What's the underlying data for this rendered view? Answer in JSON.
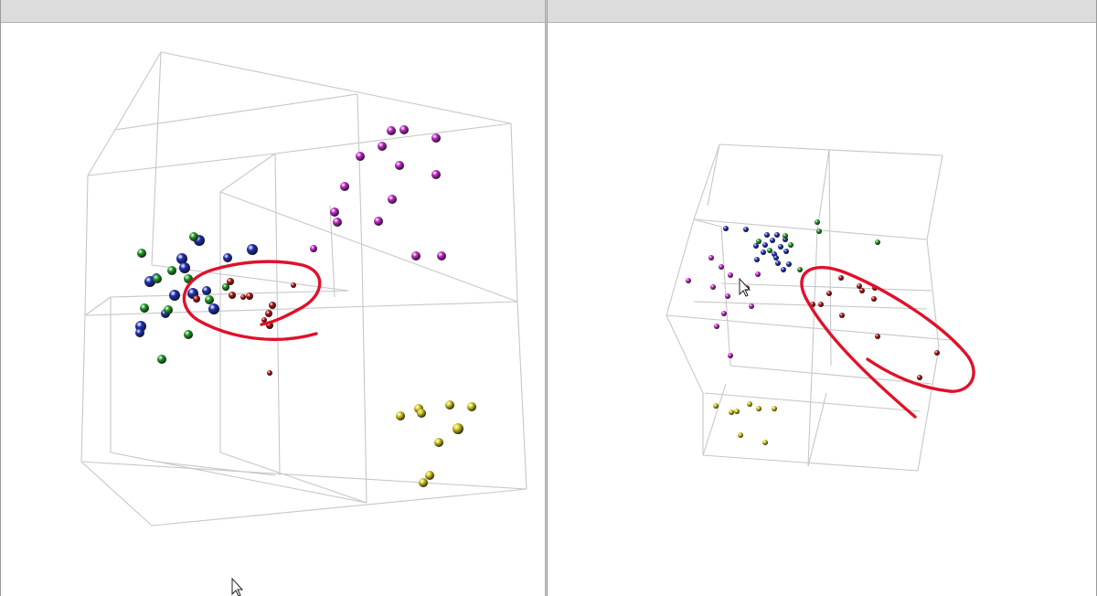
{
  "window": {
    "left_view": "3d-scatter-view-left",
    "right_view": "3d-scatter-view-right"
  },
  "colors": {
    "background": "#ffffff",
    "header": "#dcdcdc",
    "wireframe": "#c7c7c7",
    "annotation_ink": "#e0112a",
    "clusters": {
      "magenta": "#c026c6",
      "blue": "#1f2fb4",
      "green": "#1f9a25",
      "red": "#b01313",
      "yellow": "#d1c718"
    }
  },
  "icons": [
    "mouse-pointer-icon"
  ]
}
